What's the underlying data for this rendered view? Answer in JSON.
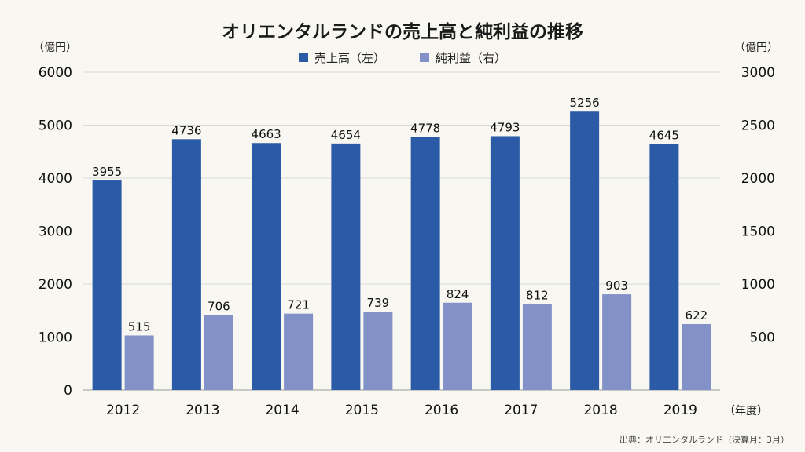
{
  "chart_data": {
    "type": "bar",
    "title": "オリエンタルランドの売上高と純利益の推移",
    "y_left_unit": "（億円）",
    "y_right_unit": "（億円）",
    "x_unit": "（年度）",
    "categories": [
      "2012",
      "2013",
      "2014",
      "2015",
      "2016",
      "2017",
      "2018",
      "2019"
    ],
    "series": [
      {
        "name": "売上高（左）",
        "axis": "left",
        "color": "#2b5aa7",
        "values": [
          3955,
          4736,
          4663,
          4654,
          4778,
          4793,
          5256,
          4645
        ]
      },
      {
        "name": "純利益（右）",
        "axis": "right",
        "color": "#8291c8",
        "values": [
          515,
          706,
          721,
          739,
          824,
          812,
          903,
          622
        ]
      }
    ],
    "y_left": {
      "range": [
        0,
        6000
      ],
      "ticks": [
        "0",
        "1000",
        "2000",
        "3000",
        "4000",
        "5000",
        "6000"
      ]
    },
    "y_right": {
      "range": [
        0,
        3000
      ],
      "ticks": [
        "500",
        "1000",
        "1500",
        "2000",
        "2500",
        "3000"
      ]
    },
    "grid": true,
    "legend_position": "top-center",
    "source": "出典：オリエンタルランド（決算月：3月）"
  }
}
